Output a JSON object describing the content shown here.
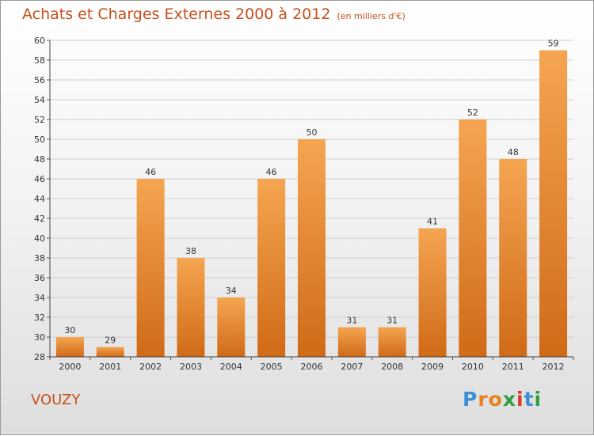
{
  "title": "Achats et Charges Externes 2000 à 2012",
  "subtitle": "(en milliers d'€)",
  "commune": "VOUZY",
  "logo": {
    "text": "Proxiti",
    "letters": [
      "P",
      "r",
      "o",
      "x",
      "i",
      "t",
      "i"
    ],
    "colors": [
      "#3a8fd6",
      "#e8821e",
      "#e8821e",
      "#2e9e3e",
      "#d63a2a",
      "#3a8fd6",
      "#2e9e3e"
    ]
  },
  "colors": {
    "title": "#c8501d",
    "bar_top": "#f5a551",
    "bar_bottom": "#d06a17",
    "grid": "#cfcfcf"
  },
  "chart_data": {
    "type": "bar",
    "title": "Achats et Charges Externes 2000 à 2012",
    "subtitle": "(en milliers d'€)",
    "categories": [
      "2000",
      "2001",
      "2002",
      "2003",
      "2004",
      "2005",
      "2006",
      "2007",
      "2008",
      "2009",
      "2010",
      "2011",
      "2012"
    ],
    "values": [
      30,
      29,
      46,
      38,
      34,
      46,
      50,
      31,
      31,
      41,
      52,
      48,
      59
    ],
    "data_labels": [
      "30",
      "29",
      "46",
      "38",
      "34",
      "46",
      "50",
      "31",
      "31",
      "41",
      "52",
      "48",
      "59"
    ],
    "ylim": [
      28,
      60
    ],
    "yticks": [
      "28",
      "30",
      "32",
      "34",
      "36",
      "38",
      "40",
      "42",
      "44",
      "46",
      "48",
      "50",
      "52",
      "54",
      "56",
      "58",
      "60"
    ],
    "grid": true,
    "xlabel": "",
    "ylabel": ""
  }
}
